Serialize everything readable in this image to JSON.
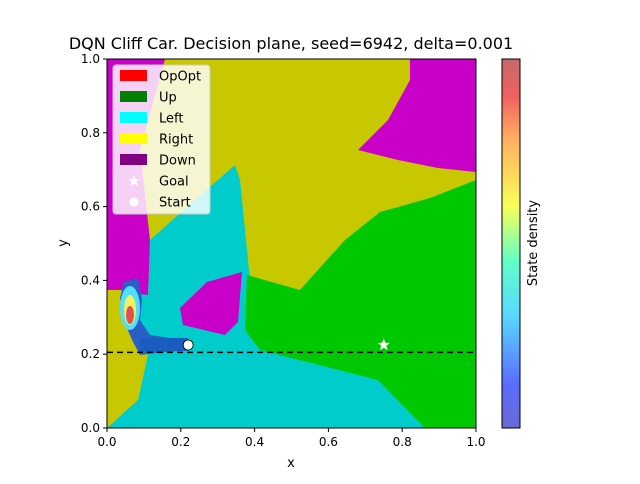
{
  "chart_data": {
    "type": "heatmap",
    "title": "DQN Cliff Car. Decision plane, seed=6942, delta=0.001",
    "xlabel": "x",
    "ylabel": "y",
    "xlim": [
      0.0,
      1.0
    ],
    "ylim": [
      0.0,
      1.0
    ],
    "xticks": [
      "0.0",
      "0.2",
      "0.4",
      "0.6",
      "0.8",
      "1.0"
    ],
    "yticks": [
      "0.0",
      "0.2",
      "0.4",
      "0.6",
      "0.8",
      "1.0"
    ],
    "grid": false,
    "legend_position": "top-left",
    "legend": [
      {
        "label": "OpOpt",
        "color": "#ff0000",
        "marker": "patch"
      },
      {
        "label": "Up",
        "color": "#008000",
        "marker": "patch"
      },
      {
        "label": "Left",
        "color": "#00ffff",
        "marker": "patch"
      },
      {
        "label": "Right",
        "color": "#ffff00",
        "marker": "patch"
      },
      {
        "label": "Down",
        "color": "#800080",
        "marker": "patch"
      },
      {
        "label": "Goal",
        "color": "#ffffff",
        "marker": "star"
      },
      {
        "label": "Start",
        "color": "#ffffff",
        "marker": "circle"
      }
    ],
    "region_colors": {
      "Up": "#00c800",
      "Left": "#00cccc",
      "Right": "#c8c800",
      "Down": "#c800c8"
    },
    "goal": {
      "x": 0.75,
      "y": 0.225
    },
    "start": {
      "x": 0.22,
      "y": 0.225
    },
    "cliff_line_y": 0.205,
    "colorbar_label": "State density"
  }
}
